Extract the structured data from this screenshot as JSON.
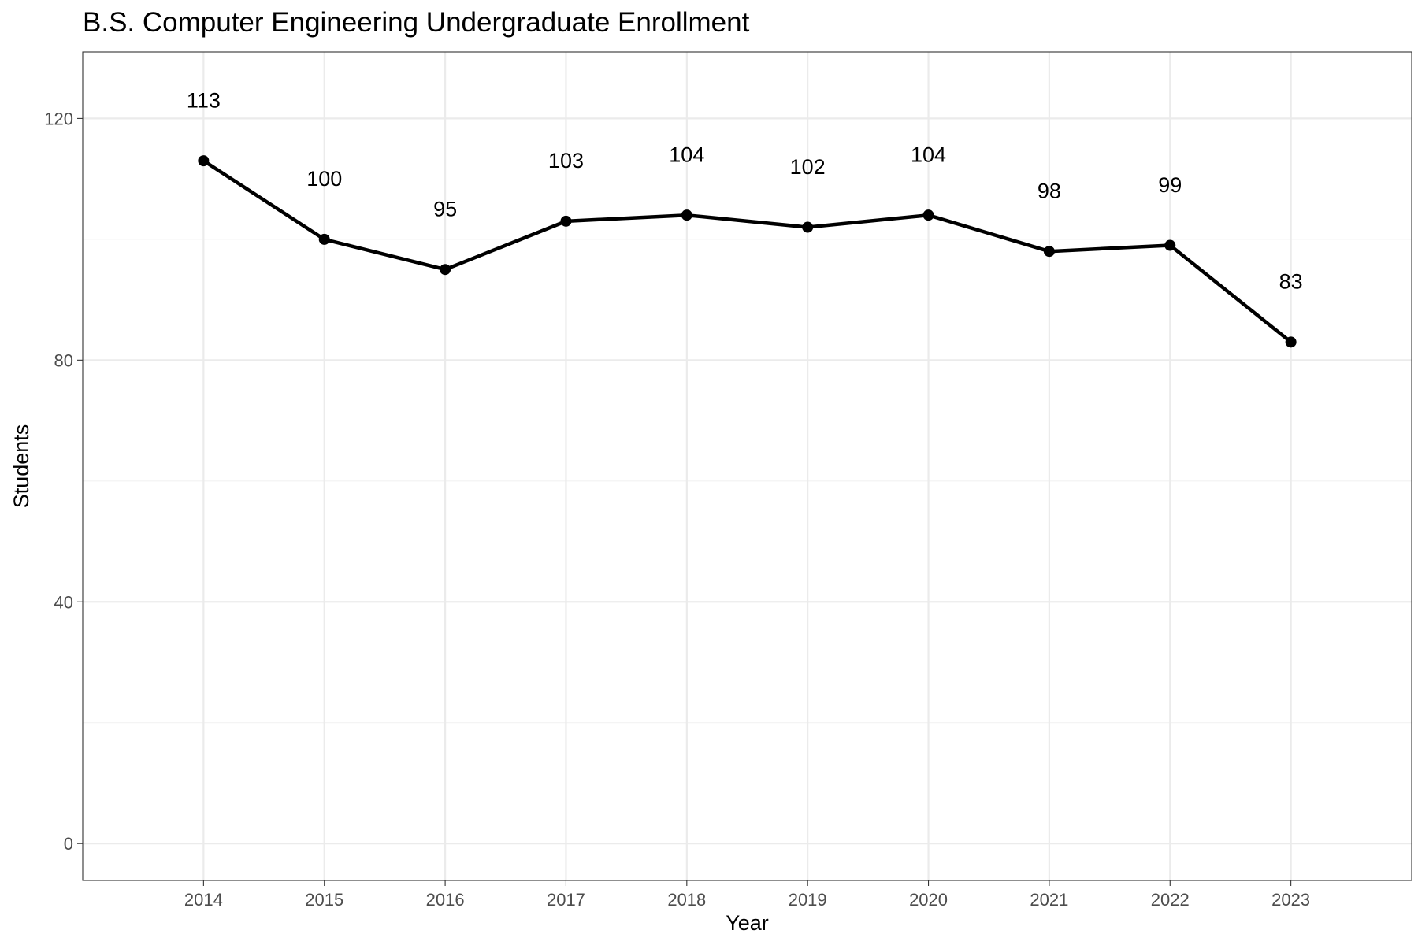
{
  "chart_data": {
    "type": "line",
    "title": "B.S. Computer Engineering Undergraduate Enrollment",
    "xlabel": "Year",
    "ylabel": "Students",
    "x": [
      "2014",
      "2015",
      "2016",
      "2017",
      "2018",
      "2019",
      "2020",
      "2021",
      "2022",
      "2023"
    ],
    "series": [
      {
        "name": "Students",
        "values": [
          113,
          100,
          95,
          103,
          104,
          102,
          104,
          98,
          99,
          83
        ]
      }
    ],
    "data_labels": [
      "113",
      "100",
      "95",
      "103",
      "104",
      "102",
      "104",
      "98",
      "99",
      "83"
    ],
    "ylim": [
      -6.1,
      131
    ],
    "y_ticks": [
      0,
      40,
      80,
      120
    ],
    "y_tick_labels": [
      "0",
      "40",
      "80",
      "120"
    ],
    "y_minor_ticks": [
      20,
      60,
      100
    ],
    "label_offset": 10,
    "grid": true,
    "legend": "none",
    "colors": {
      "line": "#000000",
      "grid": "#ebebeb",
      "background": "#ffffff"
    }
  }
}
